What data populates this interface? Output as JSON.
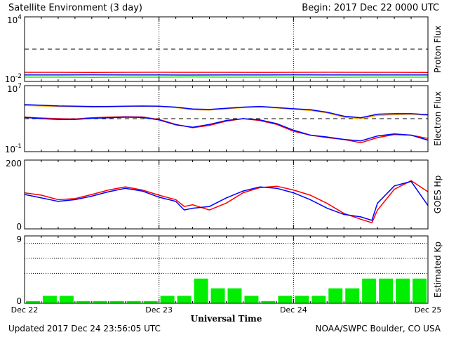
{
  "header": {
    "title": "Satellite Environment (3 day)",
    "begin": "Begin:  2017 Dec 22 0000 UTC"
  },
  "footer": {
    "updated": "Updated 2017 Dec 24 23:56:05 UTC",
    "source": "NOAA/SWPC Boulder, CO USA"
  },
  "colors": {
    "red": "#ff0000",
    "blue": "#0000ff",
    "green": "#00ee00",
    "orange": "#ffa500"
  },
  "chart_data": [
    {
      "id": "proton",
      "type": "line",
      "ylabel": "Proton Flux",
      "scale": "log",
      "ylim": [
        0.01,
        10000
      ],
      "ytick_labels": [
        {
          "base": "10",
          "exp": "4"
        },
        {
          "base": "10",
          "exp": "-2"
        }
      ],
      "threshold": 10,
      "x": [
        0,
        6,
        12,
        18,
        24,
        30,
        36,
        42,
        48,
        54,
        60,
        66,
        72
      ],
      "series": [
        {
          "color": "red",
          "values": [
            0.07,
            0.07,
            0.068,
            0.07,
            0.072,
            0.07,
            0.07,
            0.069,
            0.07,
            0.071,
            0.07,
            0.07,
            0.068
          ]
        },
        {
          "color": "blue",
          "values": [
            0.04,
            0.04,
            0.041,
            0.04,
            0.04,
            0.039,
            0.04,
            0.04,
            0.041,
            0.04,
            0.04,
            0.04,
            0.04
          ]
        },
        {
          "color": "green",
          "values": [
            0.025,
            0.025,
            0.024,
            0.025,
            0.025,
            0.026,
            0.025,
            0.025,
            0.025,
            0.024,
            0.025,
            0.025,
            0.025
          ]
        }
      ]
    },
    {
      "id": "electron",
      "type": "line",
      "ylabel": "Electron Flux",
      "scale": "log",
      "ylim": [
        0.1,
        10000000
      ],
      "ytick_labels": [
        {
          "base": "10",
          "exp": "7"
        },
        {
          "base": "10",
          "exp": "-1"
        }
      ],
      "threshold": 1000,
      "x": [
        0,
        3,
        6,
        9,
        12,
        15,
        18,
        21,
        24,
        27,
        30,
        33,
        36,
        39,
        42,
        45,
        48,
        51,
        54,
        57,
        60,
        63,
        66,
        69,
        72
      ],
      "series": [
        {
          "color": "orange",
          "values": [
            40000,
            35000,
            30000,
            28000,
            25000,
            26000,
            30000,
            32000,
            30000,
            22000,
            12000,
            11000,
            16000,
            22000,
            26000,
            20000,
            14000,
            10000,
            5000,
            1500,
            1000,
            2500,
            3000,
            3500,
            2500
          ]
        },
        {
          "color": "blue",
          "values": [
            50000,
            42000,
            35000,
            32000,
            30000,
            30000,
            32000,
            34000,
            32000,
            25000,
            15000,
            13000,
            18000,
            25000,
            30000,
            22000,
            16000,
            12000,
            6000,
            2000,
            1300,
            3500,
            4000,
            4000,
            3000
          ]
        },
        {
          "color": "red",
          "values": [
            1500,
            1200,
            1000,
            900,
            1300,
            1500,
            1700,
            1600,
            800,
            200,
            80,
            150,
            500,
            1000,
            600,
            200,
            30,
            10,
            5,
            3,
            1.2,
            5,
            12,
            10,
            4
          ]
        },
        {
          "color": "blue",
          "values": [
            1400,
            1000,
            800,
            800,
            1100,
            1300,
            1500,
            1400,
            700,
            180,
            90,
            200,
            600,
            1000,
            700,
            250,
            40,
            10,
            6,
            3,
            2,
            8,
            14,
            10,
            2.5
          ]
        }
      ]
    },
    {
      "id": "goes-hp",
      "type": "line",
      "ylabel": "GOES Hp",
      "ylim": [
        0,
        200
      ],
      "ytick_labels": [
        "200",
        "0"
      ],
      "x": [
        0,
        3,
        6,
        9,
        12,
        15,
        18,
        21,
        24,
        27,
        28.5,
        30,
        33,
        36,
        39,
        42,
        45,
        48,
        51,
        54,
        57,
        60,
        62,
        63,
        66,
        69,
        72
      ],
      "series": [
        {
          "color": "red",
          "values": [
            105,
            98,
            85,
            88,
            100,
            113,
            122,
            113,
            98,
            85,
            65,
            70,
            55,
            75,
            105,
            120,
            124,
            113,
            98,
            74,
            45,
            28,
            18,
            55,
            115,
            140,
            108
          ]
        },
        {
          "color": "blue",
          "values": [
            100,
            90,
            80,
            85,
            95,
            108,
            118,
            110,
            92,
            80,
            55,
            60,
            65,
            90,
            110,
            122,
            118,
            105,
            85,
            60,
            42,
            35,
            25,
            75,
            125,
            138,
            68
          ]
        }
      ]
    },
    {
      "id": "kp",
      "type": "bar",
      "ylabel": "Estimated Kp",
      "ylim": [
        0,
        9
      ],
      "ytick_labels": [
        "9",
        "0"
      ],
      "x_tick_labels": [
        "Dec 22",
        "Dec 23",
        "Dec 24",
        "Dec 25"
      ],
      "xlabel": "Universal Time",
      "values": [
        0.3,
        1,
        1,
        0.3,
        0.3,
        0.3,
        0.3,
        0.3,
        1,
        1,
        3.3,
        2,
        2,
        1,
        0.3,
        1,
        1,
        1,
        2,
        2,
        3.3,
        3.3,
        3.3,
        3.3
      ],
      "bar_color": "green"
    }
  ]
}
